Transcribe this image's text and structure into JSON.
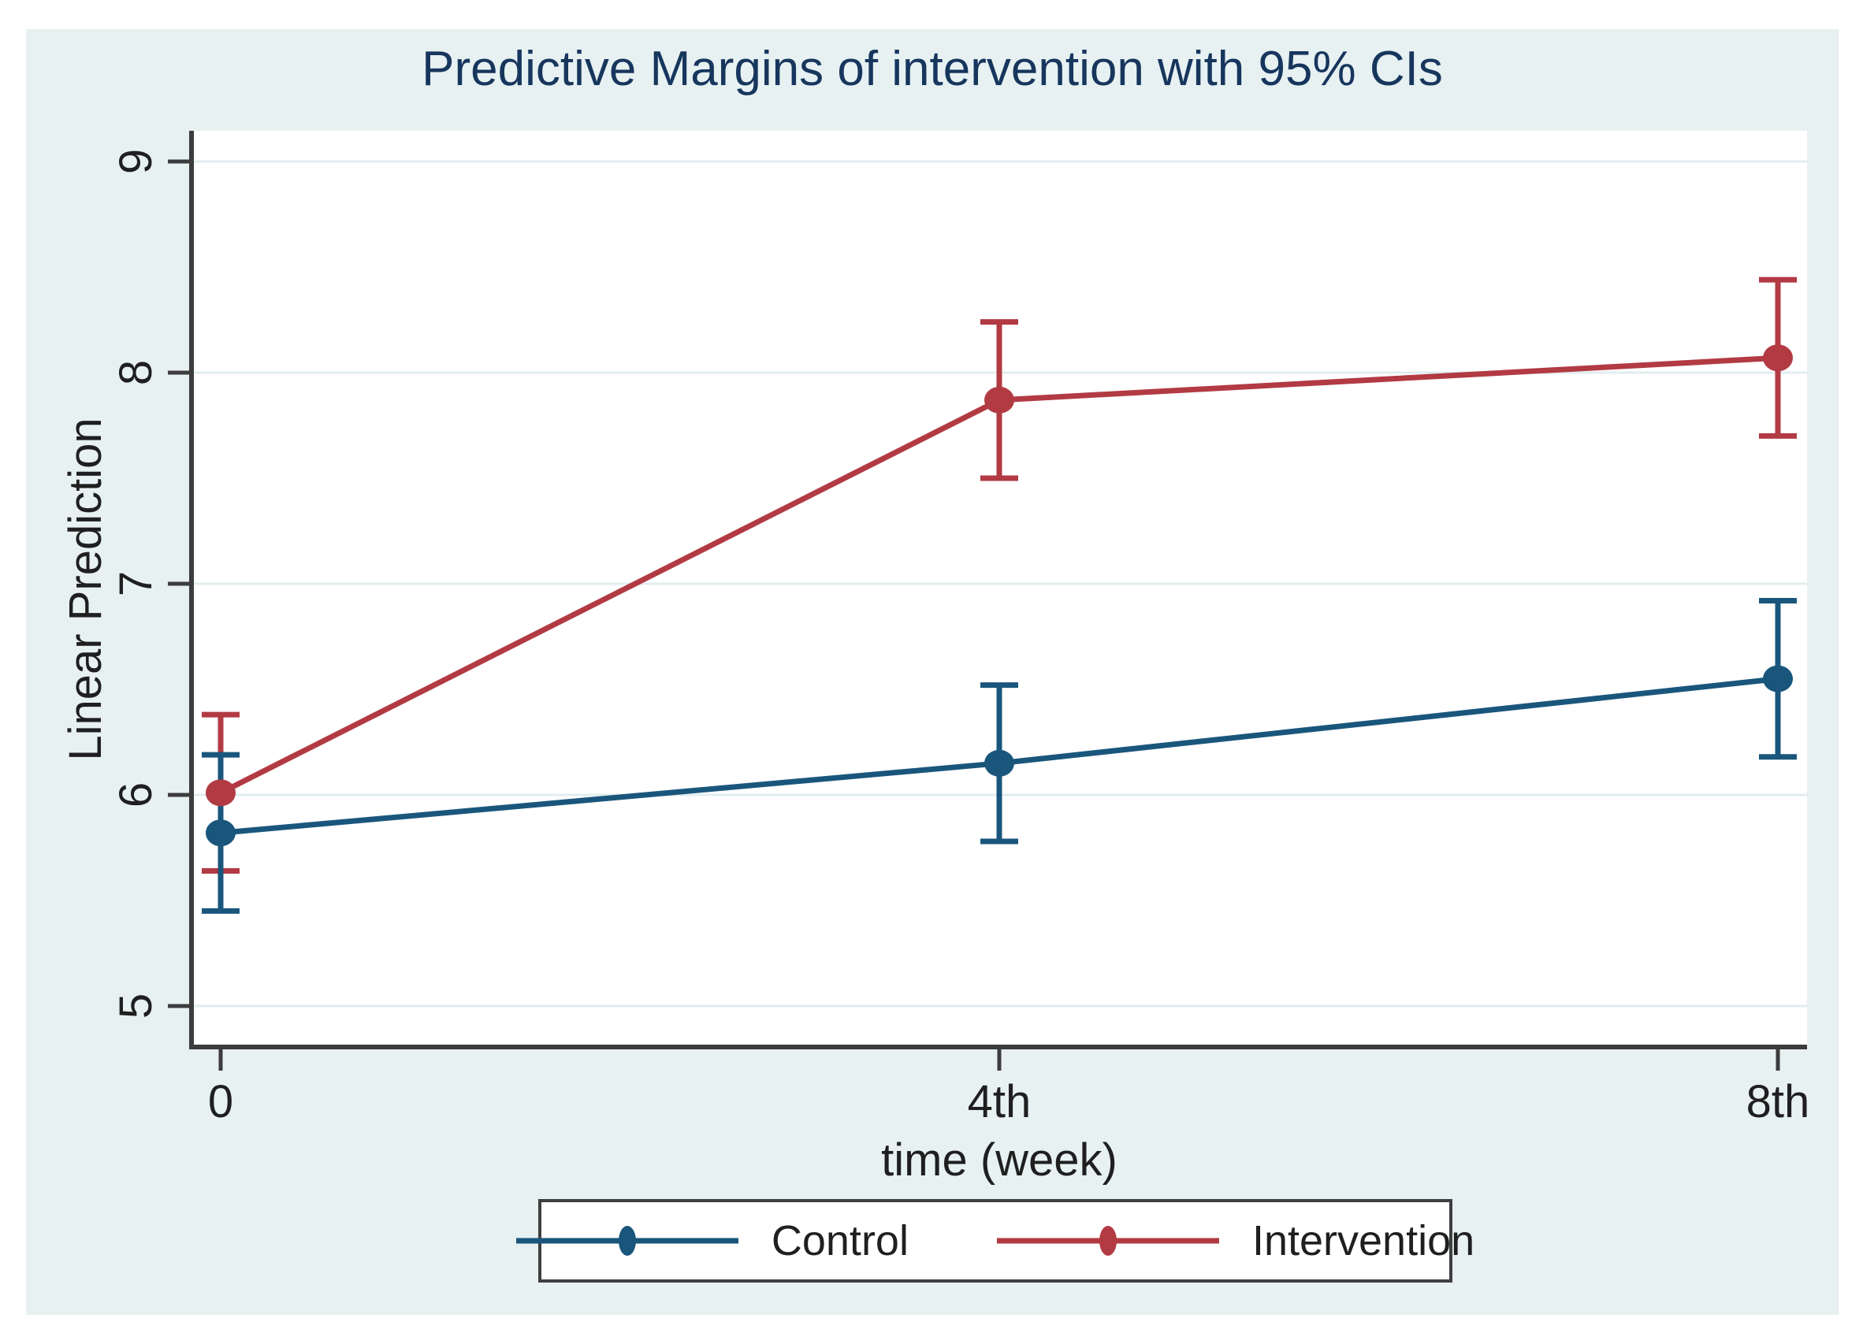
{
  "title": "Predictive Margins of intervention with 95% CIs",
  "colors": {
    "background": "#e7f1f2",
    "plot_background": "#ffffff",
    "gridline": "#e2edef",
    "axis": "#3c3c3c",
    "text": "#1f1f1f",
    "title": "#17365d",
    "legend_border": "#3f3f3f",
    "control": "#1a567c",
    "intervention": "#b23a43"
  },
  "chart_data": {
    "type": "line",
    "title": "Predictive Margins of intervention with 95% CIs",
    "xlabel": "time (week)",
    "ylabel": "Linear Prediction",
    "x": [
      0,
      4,
      8
    ],
    "x_tick_labels": [
      "0",
      "4th",
      "8th"
    ],
    "y_ticks": [
      5,
      6,
      7,
      8,
      9
    ],
    "y_tick_labels": [
      "5",
      "6",
      "7",
      "8",
      "9"
    ],
    "ylim": [
      4.85,
      9.15
    ],
    "xlim": [
      -0.15,
      8.15
    ],
    "grid": true,
    "error_bars": "95% CI",
    "legend_position": "bottom",
    "series": [
      {
        "name": "Control",
        "color": "#1a567c",
        "values": [
          5.82,
          6.15,
          6.55
        ],
        "ci_low": [
          5.45,
          5.78,
          6.18
        ],
        "ci_high": [
          6.19,
          6.52,
          6.92
        ]
      },
      {
        "name": "Intervention",
        "color": "#b23a43",
        "values": [
          6.01,
          7.87,
          8.07
        ],
        "ci_low": [
          5.64,
          7.5,
          7.7
        ],
        "ci_high": [
          6.38,
          8.24,
          8.44
        ]
      }
    ]
  }
}
